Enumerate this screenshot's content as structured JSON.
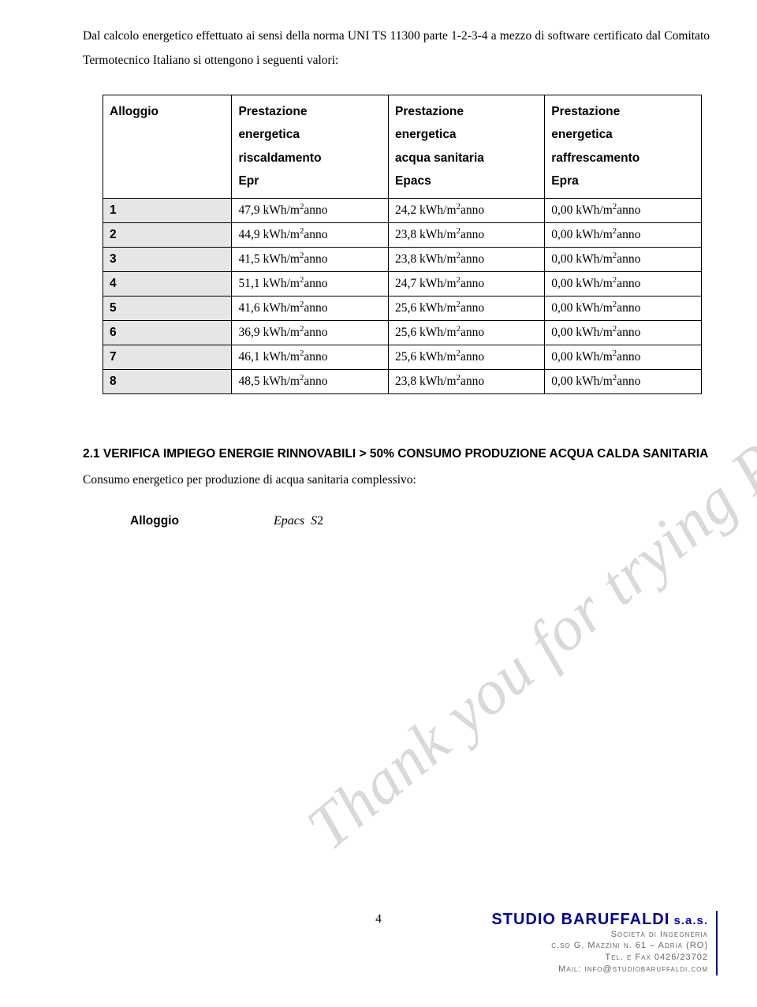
{
  "intro": "Dal calcolo energetico effettuato ai sensi della norma UNI TS 11300 parte 1-2-3-4 a mezzo di software certificato dal Comitato Termotecnico Italiano si ottengono i seguenti valori:",
  "watermark": "Thank you for trying PDF Suite",
  "table": {
    "columns": [
      "Alloggio",
      "Prestazione energetica riscaldamento Epr",
      "Prestazione energetica acqua sanitaria Epacs",
      "Prestazione energetica raffrescamento Epra"
    ],
    "header_lines": {
      "col0": [
        "Alloggio"
      ],
      "col1": [
        "Prestazione",
        "energetica",
        "riscaldamento",
        "Epr"
      ],
      "col2": [
        "Prestazione",
        "energetica",
        "acqua sanitaria",
        "Epacs"
      ],
      "col3": [
        "Prestazione",
        "energetica",
        "raffrescamento",
        "Epra"
      ]
    },
    "unit_prefix": " kWh/m",
    "unit_sup": "2",
    "unit_suffix": "anno",
    "rows": [
      {
        "id": "1",
        "epr": "47,9",
        "epacs": "24,2",
        "epra": "0,00"
      },
      {
        "id": "2",
        "epr": "44,9",
        "epacs": "23,8",
        "epra": "0,00"
      },
      {
        "id": "3",
        "epr": "41,5",
        "epacs": "23,8",
        "epra": "0,00"
      },
      {
        "id": "4",
        "epr": "51,1",
        "epacs": "24,7",
        "epra": "0,00"
      },
      {
        "id": "5",
        "epr": "41,6",
        "epacs": "25,6",
        "epra": "0,00"
      },
      {
        "id": "6",
        "epr": "36,9",
        "epacs": "25,6",
        "epra": "0,00"
      },
      {
        "id": "7",
        "epr": "46,1",
        "epacs": "25,6",
        "epra": "0,00"
      },
      {
        "id": "8",
        "epr": "48,5",
        "epacs": "23,8",
        "epra": "0,00"
      }
    ],
    "header_bg": "#ffffff",
    "rowlabel_bg": "#e6e6e6",
    "border_color": "#000000"
  },
  "section": {
    "heading": "2.1 VERIFICA IMPIEGO ENERGIE RINNOVABILI > 50% CONSUMO PRODUZIONE ACQUA CALDA SANITARIA",
    "subtext": "Consumo energetico per produzione di acqua sanitaria complessivo:",
    "formula_label": "Alloggio",
    "formula_lhs": "Epacs",
    "formula_mid": "S",
    "formula_rhs": "2"
  },
  "page_number": "4",
  "footer": {
    "line1_main": "STUDIO BARUFFALDI",
    "line1_suffix": " s.a.s.",
    "line2": "Società di Ingegneria",
    "line3": "c.so G. Mazzini n. 61 – Adria (RO)",
    "line4": "Tel. e Fax 0426/23702",
    "line5": "Mail: info@studiobaruffaldi.com",
    "brand_color": "#000099",
    "text_color": "#666666"
  }
}
